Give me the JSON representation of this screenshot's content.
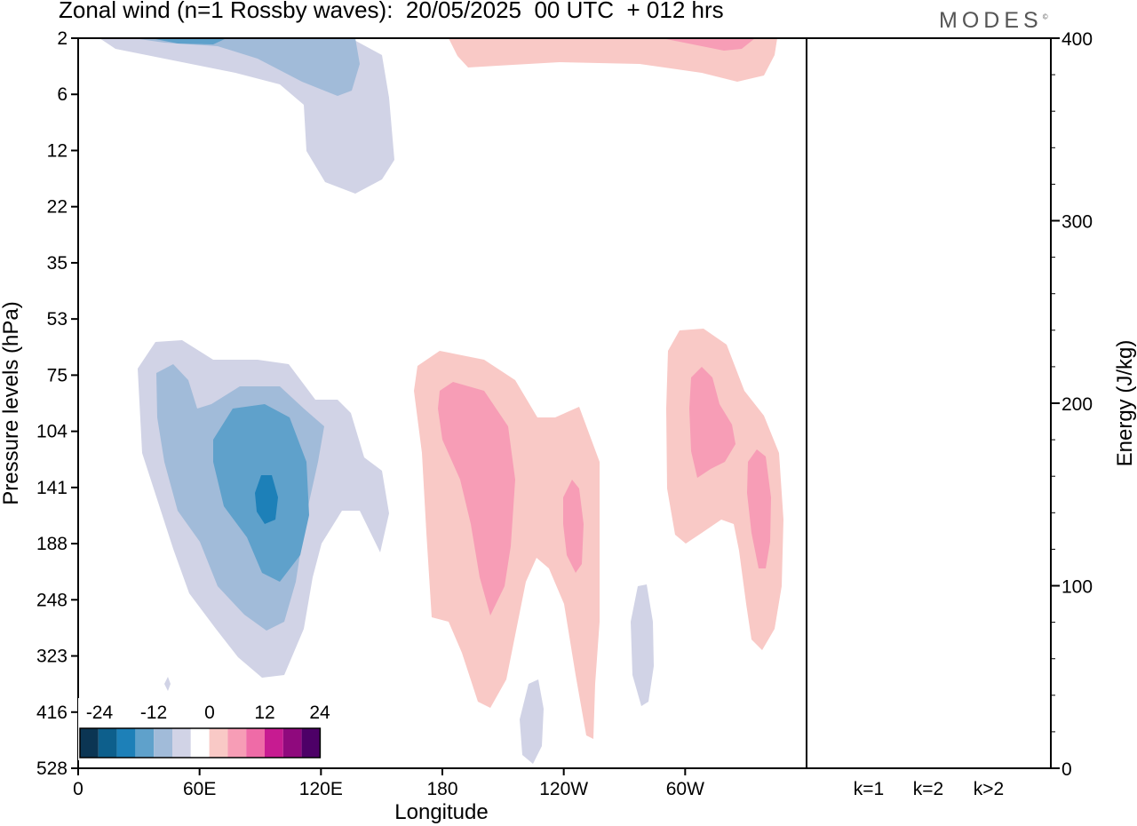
{
  "title": "Zonal wind (n=1 Rossby waves):  20/05/2025  00 UTC  + 012 hrs",
  "brand": "MODES",
  "brand_mark": "©",
  "chart_data": [
    {
      "type": "heatmap",
      "xlabel": "Longitude",
      "ylabel": "Pressure levels (hPa)",
      "x_ticks": [
        "0",
        "60E",
        "120E",
        "180",
        "120W",
        "60W"
      ],
      "x_tick_values": [
        0,
        60,
        120,
        180,
        240,
        300
      ],
      "xlim": [
        0,
        360
      ],
      "y_ticks": [
        "2",
        "6",
        "12",
        "22",
        "35",
        "53",
        "75",
        "104",
        "141",
        "188",
        "248",
        "323",
        "416",
        "528"
      ],
      "colorbar": {
        "labels": [
          "-24",
          "-12",
          "0",
          "12",
          "24"
        ],
        "colors": [
          "#0b3553",
          "#0d5f8c",
          "#1d80b8",
          "#5fa1cb",
          "#a1bbd9",
          "#d1d3e6",
          "#ffffff",
          "#f9c9c6",
          "#f79db6",
          "#ef6ba7",
          "#c71b91",
          "#8f097d",
          "#4d0067"
        ]
      },
      "regions": [
        {
          "sign": "negative",
          "level": -4,
          "lon": 78,
          "level_label": "104-323"
        },
        {
          "sign": "negative",
          "level": -16,
          "lon": 92,
          "level_label": "141"
        },
        {
          "sign": "negative",
          "level": -4,
          "lon": 100,
          "level_label": "2-22"
        },
        {
          "sign": "positive",
          "level": 8,
          "lon": 200,
          "level_label": "104-248"
        },
        {
          "sign": "positive",
          "level": 8,
          "lon": 306,
          "level_label": "75-188"
        },
        {
          "sign": "positive",
          "level": 4,
          "lon": 300,
          "level_label": "2-6"
        }
      ]
    },
    {
      "type": "bar",
      "categories": [
        "k=1",
        "k=2",
        "k>2"
      ],
      "values": [
        0.3,
        0.1,
        0.3
      ],
      "ylabel": "Energy (J/kg)",
      "ylim": [
        0,
        400
      ],
      "y_ticks": [
        "0",
        "100",
        "200",
        "300",
        "400"
      ],
      "y_tick_values": [
        0,
        100,
        200,
        300,
        400
      ]
    }
  ]
}
